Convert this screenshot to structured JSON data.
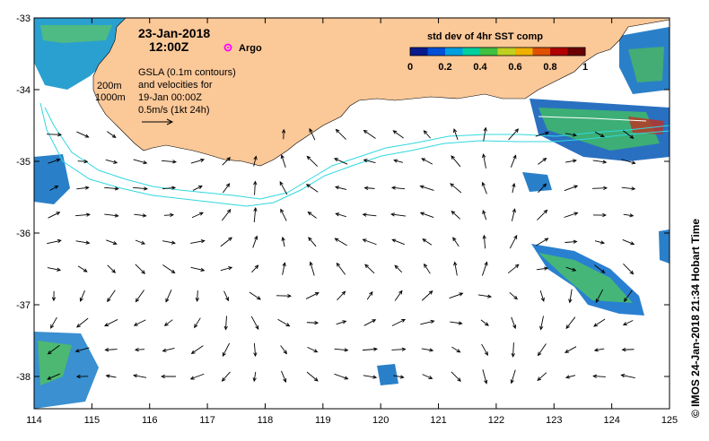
{
  "title": {
    "date": "23-Jan-2018",
    "time": "12:00Z"
  },
  "legend": {
    "argo_label": "Argo",
    "depth_200": "200m",
    "depth_1000": "1000m",
    "gsla_lines": [
      "GSLA (0.1m contours)",
      "and velocities for",
      "19-Jan 00:00Z",
      "0.5m/s (1kt 24h)"
    ]
  },
  "colorbar": {
    "title": "std dev of 4hr SST comp",
    "ticks": [
      "0",
      "0.2",
      "0.4",
      "0.6",
      "0.8",
      "1"
    ],
    "colors": [
      "#0a1a8c",
      "#0050d8",
      "#00a0e0",
      "#00d0a0",
      "#40c040",
      "#c0d020",
      "#f0b000",
      "#e05000",
      "#b00000",
      "#6a0000"
    ]
  },
  "axes": {
    "lon_ticks": [
      "114",
      "115",
      "116",
      "117",
      "118",
      "119",
      "120",
      "121",
      "122",
      "123",
      "124",
      "125"
    ],
    "lat_ticks": [
      "-33",
      "-34",
      "-35",
      "-36",
      "-37",
      "-38"
    ]
  },
  "credit": "©  IMOS 24-Jan-2018 21:34 Hobart Time",
  "colors": {
    "land": "#fbc898",
    "contour": "#30d8e0",
    "argo": "#ff00ff"
  }
}
